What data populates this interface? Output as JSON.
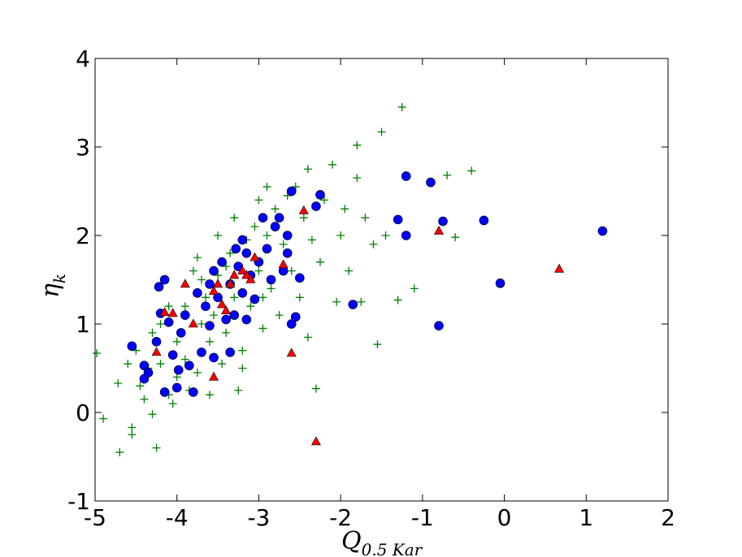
{
  "chart_data": {
    "type": "scatter",
    "xlabel": {
      "text": "Q",
      "subscript": "0.5 Kar"
    },
    "ylabel": {
      "text": "η",
      "subscript": "k"
    },
    "xlim": [
      -5,
      2
    ],
    "xticks": [
      -5,
      -4,
      -3,
      -2,
      -1,
      0,
      1,
      2
    ],
    "ylim": [
      -1,
      4
    ],
    "yticks": [
      -1,
      0,
      1,
      2,
      3,
      4
    ],
    "series": [
      {
        "marker": "plus",
        "color": "#008000",
        "x": [
          -4.9,
          -4.98,
          -4.7,
          -4.55,
          -4.55,
          -4.72,
          -4.25,
          -4.3,
          -4.4,
          -4.45,
          -4.35,
          -4.6,
          -4.5,
          -4.3,
          -4.2,
          -4.1,
          -4.0,
          -4.1,
          -4.0,
          -3.9,
          -3.85,
          -3.75,
          -3.7,
          -3.65,
          -3.6,
          -3.55,
          -3.5,
          -3.45,
          -3.4,
          -3.35,
          -3.3,
          -3.25,
          -3.2,
          -3.15,
          -3.1,
          -3.05,
          -3.0,
          -2.95,
          -2.9,
          -2.85,
          -2.8,
          -2.75,
          -2.7,
          -2.65,
          -2.6,
          -2.55,
          -2.5,
          -2.45,
          -2.4,
          -2.35,
          -2.3,
          -2.25,
          -2.2,
          -2.1,
          -2.05,
          -2.0,
          -1.95,
          -1.9,
          -1.8,
          -1.8,
          -1.75,
          -1.7,
          -1.6,
          -1.55,
          -1.5,
          -1.45,
          -1.3,
          -1.25,
          -1.1,
          -0.7,
          -0.6,
          -0.4,
          -2.4,
          -3.7,
          -3.8,
          -3.9,
          -4.2,
          -4.05,
          -3.6,
          -3.95,
          -3.3,
          -3.5,
          -3.0,
          -2.9,
          -3.2,
          -3.4,
          -2.95,
          -3.75
        ],
        "y": [
          -0.07,
          0.67,
          -0.45,
          -0.17,
          -0.25,
          0.33,
          -0.4,
          -0.02,
          0.15,
          0.3,
          0.5,
          0.55,
          0.7,
          0.9,
          0.55,
          0.2,
          0.4,
          1.2,
          0.8,
          0.6,
          0.25,
          0.45,
          1.0,
          1.3,
          0.8,
          1.1,
          1.55,
          0.55,
          0.9,
          1.8,
          1.3,
          0.25,
          0.7,
          1.95,
          1.2,
          2.1,
          1.6,
          0.95,
          2.0,
          1.4,
          2.3,
          1.1,
          1.9,
          2.45,
          1.6,
          2.55,
          1.3,
          2.2,
          0.85,
          1.95,
          0.27,
          1.7,
          2.4,
          2.8,
          1.25,
          2.0,
          2.3,
          1.6,
          3.02,
          2.65,
          1.25,
          2.2,
          1.9,
          0.77,
          3.17,
          2.0,
          1.27,
          3.45,
          1.4,
          2.68,
          1.98,
          2.73,
          2.75,
          1.5,
          1.6,
          1.2,
          1.0,
          0.1,
          0.2,
          0.9,
          2.2,
          2.0,
          2.4,
          2.55,
          0.5,
          1.65,
          1.3,
          1.75
        ]
      },
      {
        "marker": "circle",
        "color": "#0000ff",
        "x": [
          -4.55,
          -4.4,
          -4.4,
          -4.35,
          -4.25,
          -4.22,
          -4.2,
          -4.15,
          -4.15,
          -4.1,
          -4.05,
          -4.0,
          -3.98,
          -3.95,
          -3.9,
          -3.85,
          -3.8,
          -3.75,
          -3.7,
          -3.65,
          -3.6,
          -3.55,
          -3.55,
          -3.5,
          -3.45,
          -3.4,
          -3.35,
          -3.3,
          -3.28,
          -3.25,
          -3.2,
          -3.2,
          -3.15,
          -3.1,
          -3.05,
          -3.0,
          -2.95,
          -2.9,
          -2.85,
          -2.8,
          -2.75,
          -2.7,
          -2.65,
          -2.65,
          -2.6,
          -2.55,
          -2.5,
          -2.6,
          -2.3,
          -2.25,
          -1.85,
          -1.3,
          -1.2,
          -1.2,
          -0.9,
          -0.8,
          -0.75,
          -0.25,
          -0.05,
          1.2,
          -3.35,
          -3.15,
          -3.6
        ],
        "y": [
          0.75,
          0.38,
          0.53,
          0.45,
          0.8,
          1.42,
          1.12,
          1.5,
          0.23,
          1.02,
          0.65,
          0.28,
          0.48,
          0.9,
          1.1,
          0.53,
          0.23,
          1.35,
          0.68,
          1.2,
          0.98,
          0.62,
          1.6,
          1.3,
          1.7,
          1.05,
          1.45,
          1.1,
          1.85,
          1.65,
          1.35,
          1.95,
          1.8,
          1.55,
          1.28,
          1.7,
          2.2,
          1.85,
          1.5,
          2.1,
          2.2,
          1.6,
          2.0,
          1.8,
          1.0,
          1.08,
          1.52,
          2.5,
          2.33,
          2.46,
          1.22,
          2.18,
          2.0,
          2.67,
          2.6,
          0.98,
          2.16,
          2.17,
          1.46,
          2.05,
          0.68,
          1.05,
          1.45
        ]
      },
      {
        "marker": "triangle",
        "color": "#ff0000",
        "x": [
          -4.25,
          -4.15,
          -3.9,
          -4.05,
          -3.8,
          -3.55,
          -3.55,
          -3.5,
          -3.45,
          -3.4,
          -3.35,
          -3.3,
          -3.2,
          -3.15,
          -3.1,
          -3.05,
          -2.7,
          -2.6,
          -2.45,
          -2.3,
          -0.8,
          0.67
        ],
        "y": [
          0.68,
          1.13,
          1.45,
          1.12,
          1.0,
          0.4,
          1.37,
          1.45,
          1.22,
          1.15,
          1.45,
          1.55,
          1.6,
          1.55,
          1.5,
          1.75,
          1.67,
          0.67,
          2.28,
          -0.33,
          2.05,
          1.62
        ]
      }
    ]
  }
}
